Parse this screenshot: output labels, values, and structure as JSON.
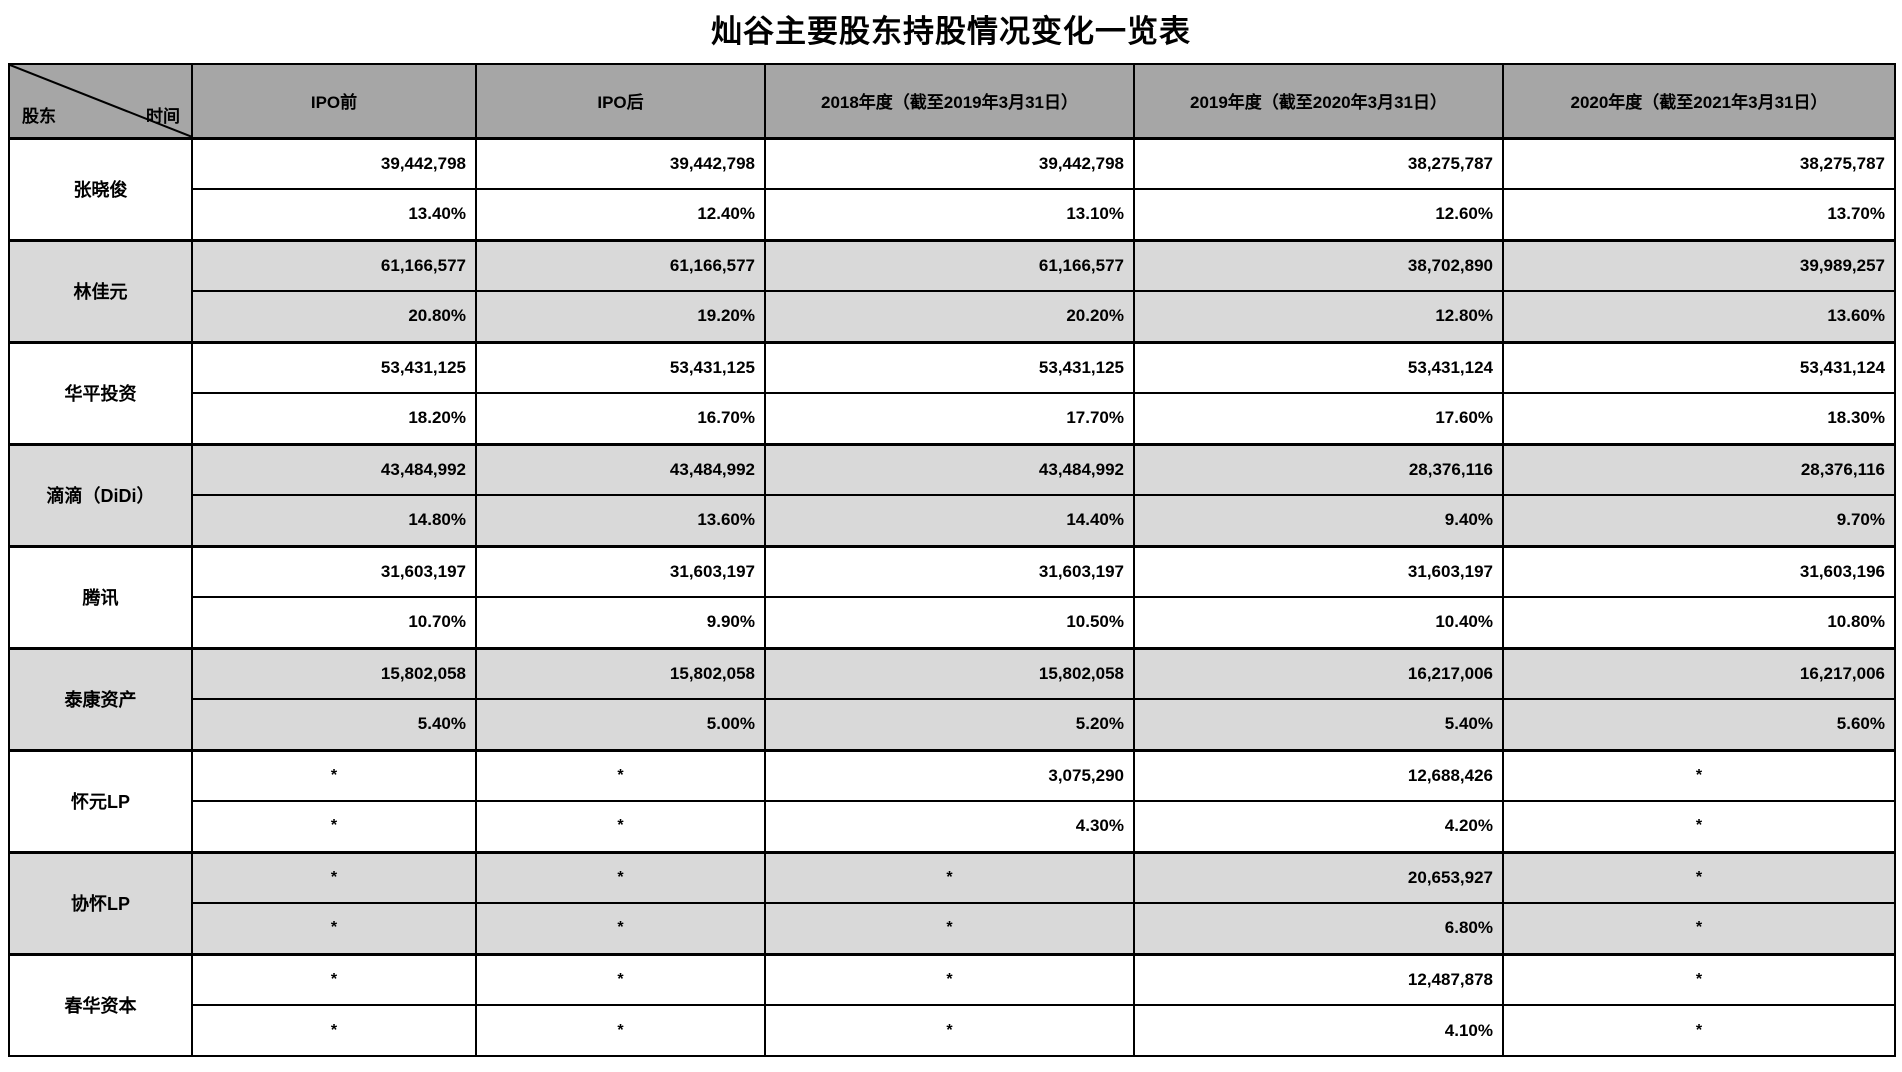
{
  "colors": {
    "header_bg": "#a6a6a6",
    "alt_row_bg": "#d9d9d9",
    "row_bg": "#ffffff",
    "border": "#000000",
    "text": "#000000"
  },
  "chart_data": {
    "type": "table",
    "title": "灿谷主要股东持股情况变化一览表",
    "corner": {
      "row_axis_label": "股东",
      "col_axis_label": "时间"
    },
    "columns": [
      "IPO前",
      "IPO后",
      "2018年度（截至2019年3月31日）",
      "2019年度（截至2020年3月31日）",
      "2020年度（截至2021年3月31日）"
    ],
    "rows": [
      {
        "name": "张晓俊",
        "shares": [
          "39,442,798",
          "39,442,798",
          "39,442,798",
          "38,275,787",
          "38,275,787"
        ],
        "pct": [
          "13.40%",
          "12.40%",
          "13.10%",
          "12.60%",
          "13.70%"
        ]
      },
      {
        "name": "林佳元",
        "shares": [
          "61,166,577",
          "61,166,577",
          "61,166,577",
          "38,702,890",
          "39,989,257"
        ],
        "pct": [
          "20.80%",
          "19.20%",
          "20.20%",
          "12.80%",
          "13.60%"
        ]
      },
      {
        "name": "华平投资",
        "shares": [
          "53,431,125",
          "53,431,125",
          "53,431,125",
          "53,431,124",
          "53,431,124"
        ],
        "pct": [
          "18.20%",
          "16.70%",
          "17.70%",
          "17.60%",
          "18.30%"
        ]
      },
      {
        "name": "滴滴（DiDi）",
        "shares": [
          "43,484,992",
          "43,484,992",
          "43,484,992",
          "28,376,116",
          "28,376,116"
        ],
        "pct": [
          "14.80%",
          "13.60%",
          "14.40%",
          "9.40%",
          "9.70%"
        ]
      },
      {
        "name": "腾讯",
        "shares": [
          "31,603,197",
          "31,603,197",
          "31,603,197",
          "31,603,197",
          "31,603,196"
        ],
        "pct": [
          "10.70%",
          "9.90%",
          "10.50%",
          "10.40%",
          "10.80%"
        ]
      },
      {
        "name": "泰康资产",
        "shares": [
          "15,802,058",
          "15,802,058",
          "15,802,058",
          "16,217,006",
          "16,217,006"
        ],
        "pct": [
          "5.40%",
          "5.00%",
          "5.20%",
          "5.40%",
          "5.60%"
        ]
      },
      {
        "name": "怀元LP",
        "shares": [
          "*",
          "*",
          "3,075,290",
          "12,688,426",
          "*"
        ],
        "pct": [
          "*",
          "*",
          "4.30%",
          "4.20%",
          "*"
        ]
      },
      {
        "name": "协怀LP",
        "shares": [
          "*",
          "*",
          "*",
          "20,653,927",
          "*"
        ],
        "pct": [
          "*",
          "*",
          "*",
          "6.80%",
          "*"
        ]
      },
      {
        "name": "春华资本",
        "shares": [
          "*",
          "*",
          "*",
          "12,487,878",
          "*"
        ],
        "pct": [
          "*",
          "*",
          "*",
          "4.10%",
          "*"
        ]
      }
    ]
  }
}
